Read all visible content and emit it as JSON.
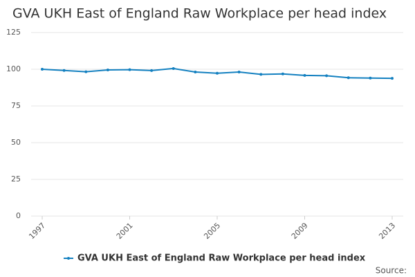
{
  "chart_data": {
    "type": "line",
    "title": "GVA UKH East of England Raw Workplace per head index",
    "source": "Source:",
    "x": [
      1997,
      1998,
      1999,
      2000,
      2001,
      2002,
      2003,
      2004,
      2005,
      2006,
      2007,
      2008,
      2009,
      2010,
      2011,
      2012,
      2013
    ],
    "series": [
      {
        "name": "GVA UKH East of England Raw Workplace per head index",
        "color": "#1380c0",
        "values": [
          100,
          99.2,
          98.3,
          99.5,
          99.7,
          99.1,
          100.5,
          98.1,
          97.3,
          98.1,
          96.5,
          96.8,
          95.8,
          95.6,
          94.2,
          94.0,
          93.8
        ]
      }
    ],
    "xlim": [
      1997,
      2013
    ],
    "xticks": [
      1997,
      2001,
      2005,
      2009,
      2013
    ],
    "ylim": [
      0,
      125
    ],
    "yticks": [
      0,
      25,
      50,
      75,
      100,
      125
    ],
    "grid": true,
    "legend": "bottom"
  }
}
